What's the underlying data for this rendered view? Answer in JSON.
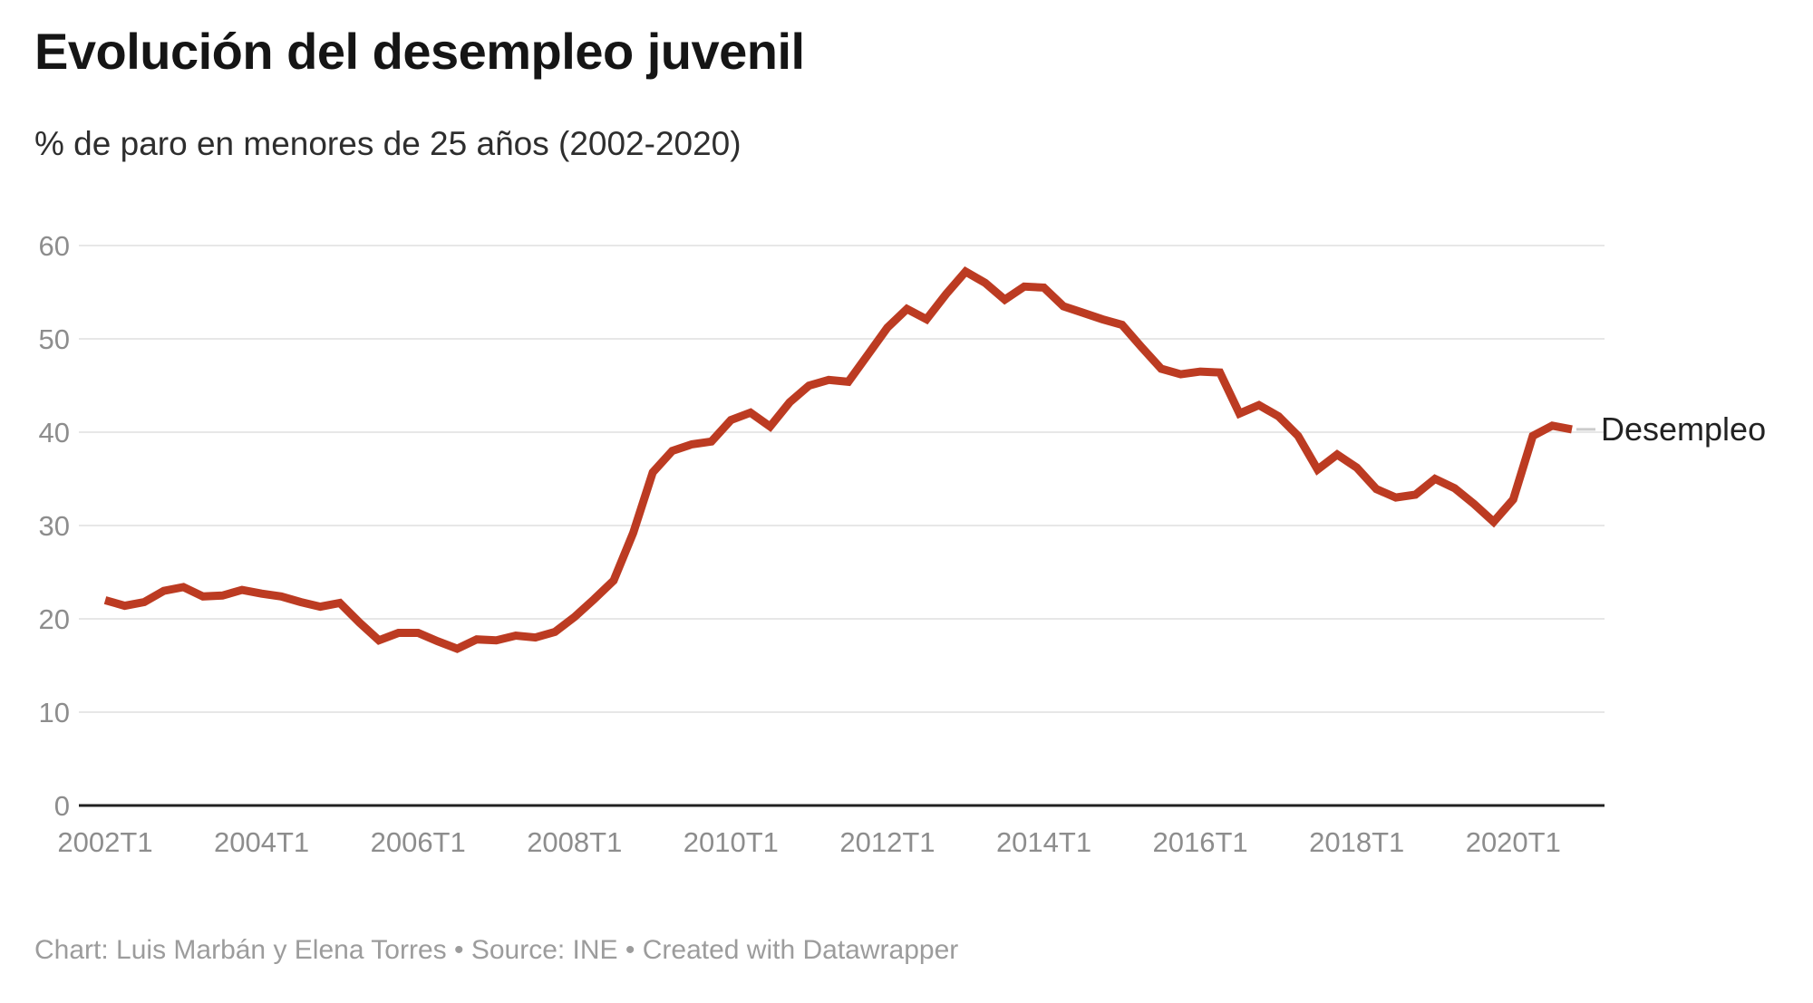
{
  "header": {
    "title": "Evolución del desempleo juvenil",
    "subtitle": "% de paro en menores de 25 años (2002-2020)"
  },
  "legend": {
    "label": "Desempleo"
  },
  "footer": {
    "text": "Chart: Luis Marbán y Elena Torres • Source: INE • Created with Datawrapper"
  },
  "colors": {
    "line": "#bc3b22",
    "grid": "#e7e7e7",
    "axis_baseline": "#212121",
    "tick_text": "#8d8d8d",
    "legend_connector": "#cbcbcb"
  },
  "chart_data": {
    "type": "line",
    "title": "Evolución del desempleo juvenil",
    "subtitle": "% de paro en menores de 25 años (2002-2020)",
    "xlabel": "",
    "ylabel": "% de paro en menores de 25 años",
    "ylim": [
      0,
      60
    ],
    "y_ticks": [
      0,
      10,
      20,
      30,
      40,
      50,
      60
    ],
    "grid": "horizontal",
    "legend_position": "right-of-line-end",
    "x_ticks": [
      {
        "label": "2002T1",
        "index": 0
      },
      {
        "label": "2004T1",
        "index": 8
      },
      {
        "label": "2006T1",
        "index": 16
      },
      {
        "label": "2008T1",
        "index": 24
      },
      {
        "label": "2010T1",
        "index": 32
      },
      {
        "label": "2012T1",
        "index": 40
      },
      {
        "label": "2014T1",
        "index": 48
      },
      {
        "label": "2016T1",
        "index": 56
      },
      {
        "label": "2018T1",
        "index": 64
      },
      {
        "label": "2020T1",
        "index": 72
      }
    ],
    "categories": [
      "2002T1",
      "2002T2",
      "2002T3",
      "2002T4",
      "2003T1",
      "2003T2",
      "2003T3",
      "2003T4",
      "2004T1",
      "2004T2",
      "2004T3",
      "2004T4",
      "2005T1",
      "2005T2",
      "2005T3",
      "2005T4",
      "2006T1",
      "2006T2",
      "2006T3",
      "2006T4",
      "2007T1",
      "2007T2",
      "2007T3",
      "2007T4",
      "2008T1",
      "2008T2",
      "2008T3",
      "2008T4",
      "2009T1",
      "2009T2",
      "2009T3",
      "2009T4",
      "2010T1",
      "2010T2",
      "2010T3",
      "2010T4",
      "2011T1",
      "2011T2",
      "2011T3",
      "2011T4",
      "2012T1",
      "2012T2",
      "2012T3",
      "2012T4",
      "2013T1",
      "2013T2",
      "2013T3",
      "2013T4",
      "2014T1",
      "2014T2",
      "2014T3",
      "2014T4",
      "2015T1",
      "2015T2",
      "2015T3",
      "2015T4",
      "2016T1",
      "2016T2",
      "2016T3",
      "2016T4",
      "2017T1",
      "2017T2",
      "2017T3",
      "2017T4",
      "2018T1",
      "2018T2",
      "2018T3",
      "2018T4",
      "2019T1",
      "2019T2",
      "2019T3",
      "2019T4",
      "2020T1",
      "2020T2",
      "2020T3",
      "2020T4"
    ],
    "series": [
      {
        "name": "Desempleo",
        "values": [
          22.0,
          21.4,
          21.8,
          23.0,
          23.4,
          22.4,
          22.5,
          23.1,
          22.7,
          22.4,
          21.8,
          21.3,
          21.7,
          19.6,
          17.7,
          18.5,
          18.5,
          17.6,
          16.8,
          17.8,
          17.7,
          18.2,
          18.0,
          18.6,
          20.2,
          22.1,
          24.1,
          29.2,
          35.7,
          38.0,
          38.7,
          39.0,
          41.3,
          42.1,
          40.6,
          43.2,
          45.0,
          45.6,
          45.4,
          48.3,
          51.2,
          53.2,
          52.1,
          54.8,
          57.2,
          56.0,
          54.2,
          55.6,
          55.5,
          53.5,
          52.8,
          52.1,
          51.5,
          49.1,
          46.8,
          46.2,
          46.5,
          46.4,
          42.0,
          42.9,
          41.7,
          39.6,
          36.0,
          37.6,
          36.2,
          33.9,
          33.0,
          33.3,
          35.0,
          34.0,
          32.3,
          30.4,
          32.8,
          39.6,
          40.7,
          40.3
        ]
      }
    ]
  }
}
